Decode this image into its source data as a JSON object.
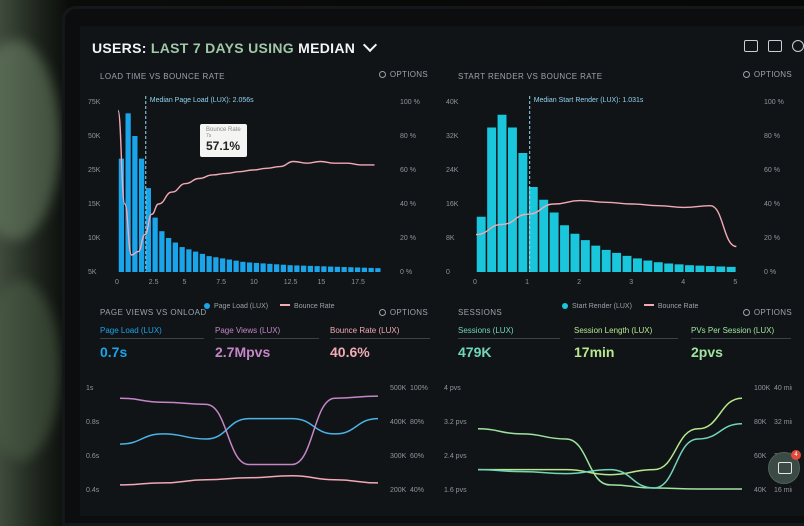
{
  "header": {
    "title_a": "USERS:",
    "title_b": "LAST 7 DAYS USING",
    "title_c": "MEDIAN"
  },
  "panels": {
    "load_time": {
      "title": "LOAD TIME VS BOUNCE RATE",
      "options": "OPTIONS",
      "y_left": [
        "75K",
        "50K",
        "25K",
        "15K",
        "10K",
        "5K"
      ],
      "y_right": [
        "100 %",
        "80 %",
        "60 %",
        "40 %",
        "20 %",
        "0 %"
      ],
      "x": [
        "0",
        "2.5",
        "5",
        "7.5",
        "10",
        "12.5",
        "15",
        "17.5"
      ],
      "median_label": "Median Page Load (LUX): 2.056s",
      "legend": [
        "Page Load (LUX)",
        "Bounce Rate"
      ],
      "tooltip": {
        "title": "Bounce Rate",
        "sub": "7s",
        "value": "57.1%"
      }
    },
    "start_render": {
      "title": "START RENDER VS BOUNCE RATE",
      "options": "OPTIONS",
      "y_left": [
        "40K",
        "32K",
        "24K",
        "16K",
        "8K",
        "0"
      ],
      "y_right": [
        "100 %",
        "80 %",
        "60 %",
        "40 %",
        "20 %",
        "0 %"
      ],
      "x": [
        "0",
        "1",
        "2",
        "3",
        "4",
        "5"
      ],
      "median_label": "Median Start Render (LUX): 1.031s",
      "legend": [
        "Start Render (LUX)",
        "Bounce Rate"
      ]
    },
    "page_views": {
      "title": "PAGE VIEWS VS ONLOAD",
      "options": "OPTIONS",
      "metrics": [
        {
          "label": "Page Load (LUX)",
          "value": "0.7s"
        },
        {
          "label": "Page Views (LUX)",
          "value": "2.7Mpvs"
        },
        {
          "label": "Bounce Rate (LUX)",
          "value": "40.6%"
        }
      ],
      "y_left": [
        "1s",
        "0.8s",
        "0.6s",
        "0.4s"
      ],
      "y_right_a": [
        "500K",
        "400K",
        "300K",
        "200K"
      ],
      "y_right_b": [
        "100%",
        "80%",
        "60%",
        "40%"
      ]
    },
    "sessions": {
      "title": "SESSIONS",
      "options": "OPTIONS",
      "metrics": [
        {
          "label": "Sessions (LUX)",
          "value": "479K"
        },
        {
          "label": "Session Length (LUX)",
          "value": "17min"
        },
        {
          "label": "PVs Per Session (LUX)",
          "value": "2pvs"
        }
      ],
      "y_left": [
        "4 pvs",
        "3.2 pvs",
        "2.4 pvs",
        "1.6 pvs"
      ],
      "y_right_a": [
        "100K",
        "80K",
        "60K",
        "40K"
      ],
      "y_right_b": [
        "40 min",
        "32 min",
        "24 min",
        "16 min"
      ]
    }
  },
  "colors": {
    "blue": "#1aa4ea",
    "cyan": "#19c6dc",
    "pink": "#f1a9b5",
    "purple": "#c586c8",
    "green": "#9fe3a1",
    "teal": "#71d5b9"
  },
  "chat_badge": {
    "count": "4"
  },
  "chart_data": [
    {
      "type": "bar",
      "title": "LOAD TIME VS BOUNCE RATE",
      "x": [
        0.25,
        0.75,
        1.25,
        1.75,
        2.25,
        2.75,
        3.25,
        3.75,
        4.25,
        4.75,
        5.25,
        5.75,
        6.25,
        6.75,
        7.25,
        7.75,
        8.25,
        8.75,
        9.25,
        9.75,
        10.25,
        10.75,
        11.25,
        11.75,
        12.25,
        12.75,
        13.25,
        13.75,
        14.25,
        14.75,
        15.25,
        15.75,
        16.25,
        16.75,
        17.25,
        17.75,
        18.25,
        18.75,
        19.25
      ],
      "series": [
        {
          "name": "Page Load (LUX)",
          "values": [
            50000,
            70000,
            60000,
            50000,
            37000,
            24000,
            18000,
            15000,
            13000,
            11000,
            10000,
            9000,
            8000,
            7000,
            6500,
            6000,
            5500,
            5000,
            4500,
            4200,
            4000,
            3800,
            3600,
            3400,
            3200,
            3000,
            2900,
            2800,
            2700,
            2600,
            2500,
            2400,
            2300,
            2200,
            2100,
            2000,
            1900,
            1800,
            1700
          ]
        },
        {
          "name": "Bounce Rate",
          "x": [
            0,
            0.5,
            1,
            1.5,
            2,
            2.5,
            3,
            4,
            5,
            6,
            7,
            8,
            9,
            10,
            11,
            12,
            13,
            14,
            15,
            16,
            17,
            18,
            19
          ],
          "values": [
            95,
            40,
            10,
            12,
            22,
            34,
            40,
            47,
            52,
            55,
            57.1,
            58,
            59,
            60,
            61,
            62,
            65,
            64,
            65,
            64,
            64,
            63,
            63
          ]
        }
      ],
      "ylim_left": [
        0,
        75000
      ],
      "ylim_right": [
        0,
        100
      ]
    },
    {
      "type": "bar",
      "title": "START RENDER VS BOUNCE RATE",
      "x": [
        0.1,
        0.3,
        0.5,
        0.7,
        0.9,
        1.1,
        1.3,
        1.5,
        1.7,
        1.9,
        2.1,
        2.3,
        2.5,
        2.7,
        2.9,
        3.1,
        3.3,
        3.5,
        3.7,
        3.9,
        4.1,
        4.3,
        4.5,
        4.7,
        4.9
      ],
      "series": [
        {
          "name": "Start Render (LUX)",
          "values": [
            13000,
            34000,
            37000,
            34000,
            28000,
            20000,
            17000,
            14000,
            11000,
            9000,
            7500,
            6200,
            5200,
            4500,
            3800,
            3200,
            2700,
            2300,
            2000,
            1800,
            1600,
            1500,
            1400,
            1300,
            1200
          ]
        },
        {
          "name": "Bounce Rate",
          "x": [
            0,
            0.5,
            1,
            1.5,
            2,
            2.5,
            3,
            3.5,
            4,
            4.5,
            5
          ],
          "values": [
            22,
            28,
            34,
            40,
            42,
            41,
            40,
            39,
            38,
            39,
            15
          ]
        }
      ],
      "ylim_left": [
        0,
        40000
      ],
      "ylim_right": [
        0,
        100
      ]
    }
  ]
}
